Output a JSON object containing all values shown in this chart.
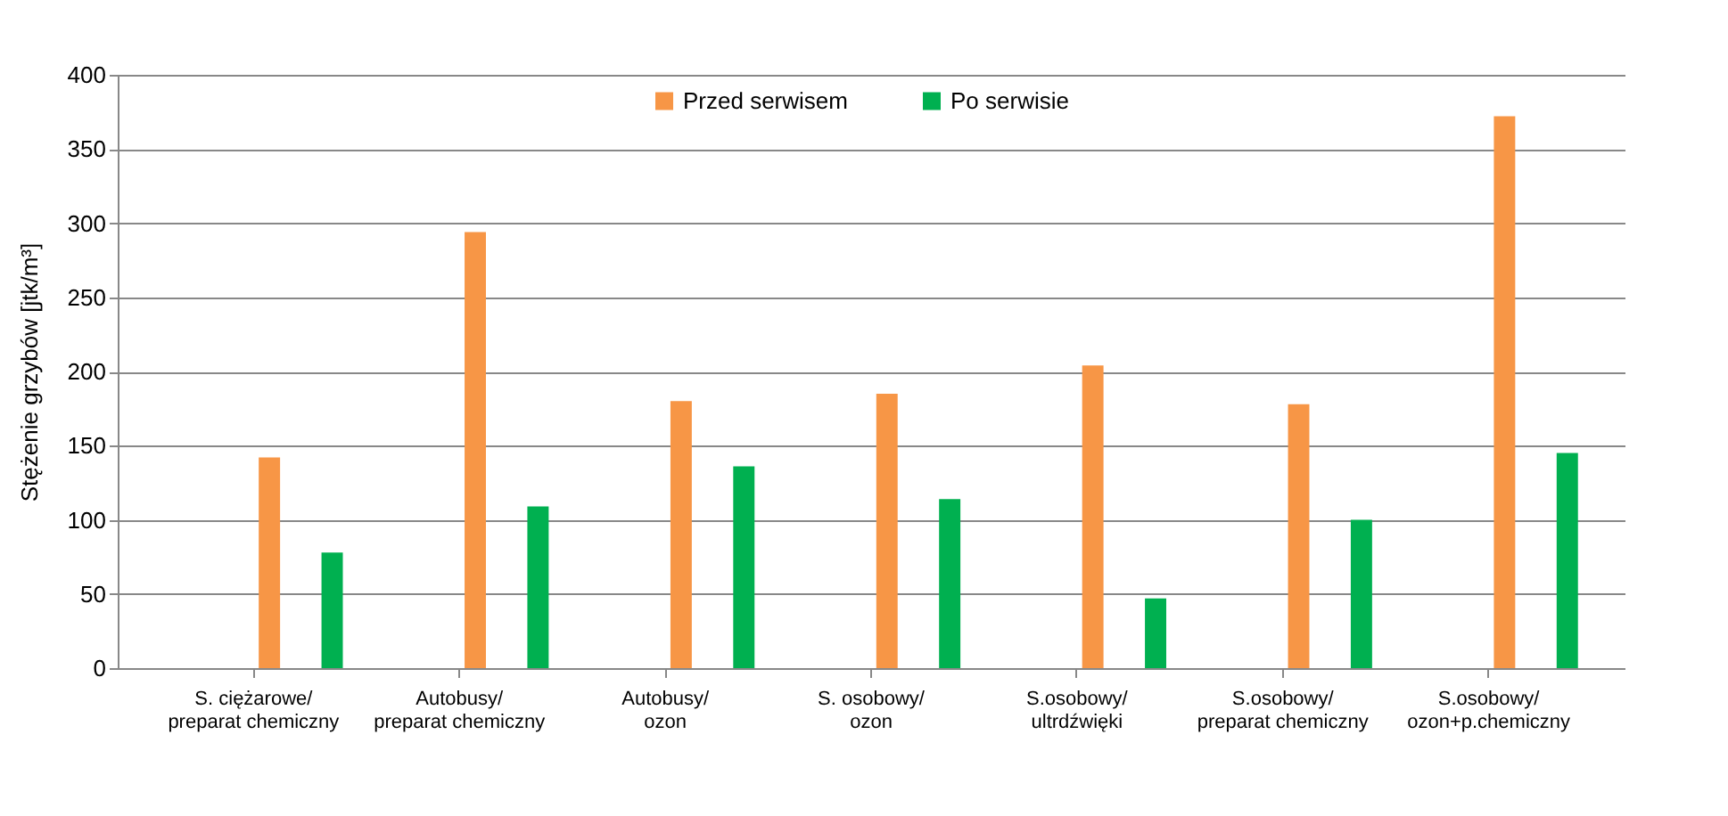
{
  "chart_data": {
    "type": "bar",
    "ylabel": "Stężenie grzybów [jtk/m³]",
    "categories": [
      "S. ciężarowe/\npreparat chemiczny",
      "Autobusy/\npreparat chemiczny",
      "Autobusy/\nozon",
      "S. osobowy/\nozon",
      "S.osobowy/\nultrdźwięki",
      "S.osobowy/\npreparat chemiczny",
      "S.osobowy/\nozon+p.chemiczny"
    ],
    "series": [
      {
        "name": "Przed serwisem",
        "color": "#f79646",
        "values": [
          142,
          294,
          180,
          185,
          204,
          178,
          372
        ]
      },
      {
        "name": "Po serwisie",
        "color": "#00b050",
        "values": [
          78,
          109,
          136,
          114,
          47,
          100,
          145
        ]
      }
    ],
    "ylim": [
      0,
      400
    ],
    "yticks": [
      0,
      50,
      100,
      150,
      200,
      250,
      300,
      350,
      400
    ],
    "grid": "y",
    "legend": "top"
  }
}
